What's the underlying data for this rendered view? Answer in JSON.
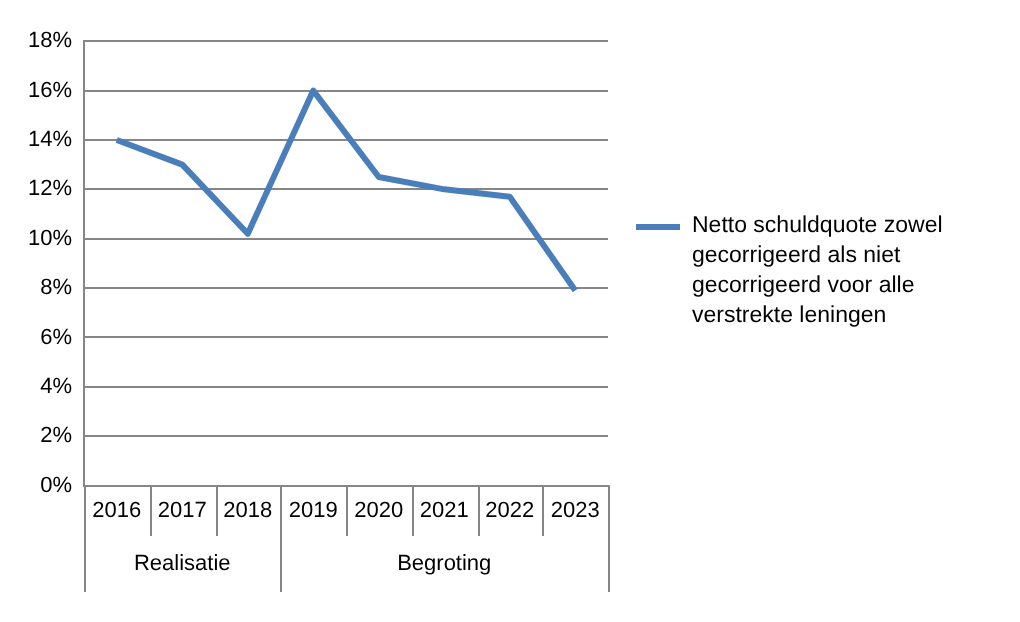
{
  "chart_data": {
    "type": "line",
    "categories": [
      "2016",
      "2017",
      "2018",
      "2019",
      "2020",
      "2021",
      "2022",
      "2023"
    ],
    "series": [
      {
        "name": "Netto schuldquote zowel gecorrigeerd als niet gecorrigeerd voor alle verstrekte leningen",
        "color": "#4a7ebb",
        "values": [
          14,
          13,
          10.2,
          16,
          12.5,
          12,
          11.7,
          7.9
        ]
      }
    ],
    "ylim": [
      0,
      18
    ],
    "yticks": [
      {
        "value": 0,
        "label": "0%"
      },
      {
        "value": 2,
        "label": "2%"
      },
      {
        "value": 4,
        "label": "4%"
      },
      {
        "value": 6,
        "label": "6%"
      },
      {
        "value": 8,
        "label": "8%"
      },
      {
        "value": 10,
        "label": "10%"
      },
      {
        "value": 12,
        "label": "12%"
      },
      {
        "value": 14,
        "label": "14%"
      },
      {
        "value": 16,
        "label": "16%"
      },
      {
        "value": 18,
        "label": "18%"
      }
    ],
    "annotations": [
      "Realisatie",
      "Begroting"
    ],
    "grid": "y",
    "legend": "right",
    "marker": "none",
    "line_style": "solid"
  }
}
